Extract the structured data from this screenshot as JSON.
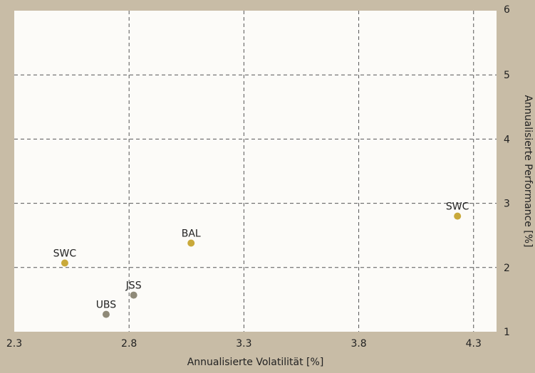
{
  "chart_data": {
    "type": "scatter",
    "title": "",
    "xlabel": "Annualisierte Volatilität [%]",
    "ylabel": "Annualisierte Performance [%]",
    "xlim": [
      2.3,
      4.4
    ],
    "ylim": [
      1,
      6
    ],
    "xticks": [
      "2.3",
      "2.8",
      "3.3",
      "3.8",
      "4.3"
    ],
    "yticks": [
      "1",
      "2",
      "3",
      "4",
      "5",
      "6"
    ],
    "grid": true,
    "series": [
      {
        "color": "#c9a93a",
        "points": [
          {
            "label": "SWC",
            "x": 2.52,
            "y": 2.07
          },
          {
            "label": "BAL",
            "x": 3.07,
            "y": 2.38
          },
          {
            "label": "SWC",
            "x": 4.23,
            "y": 2.8
          }
        ]
      },
      {
        "color": "#8f8a78",
        "points": [
          {
            "label": "JSS",
            "x": 2.82,
            "y": 1.57
          },
          {
            "label": "UBS",
            "x": 2.7,
            "y": 1.27
          }
        ]
      }
    ],
    "colors": {
      "background": "#c8bca6",
      "plot_area": "#fcfbf8",
      "grid": "#555555"
    }
  }
}
